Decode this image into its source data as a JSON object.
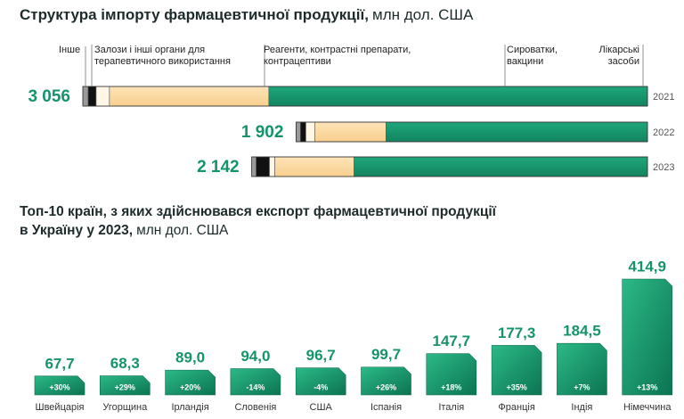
{
  "chart_data": [
    {
      "type": "stacked_hbar",
      "title": "Структура імпорту фармацевтичної продукції,",
      "unit": "млн дол. США",
      "categories": [
        "2021",
        "2022",
        "2023"
      ],
      "totals": [
        3056,
        1902,
        2142
      ],
      "value_labels": [
        "3 056",
        "1 902",
        "2 142"
      ],
      "series": [
        {
          "name": "Інше",
          "color": "#9a9a9a",
          "values": [
            29,
            24,
            24
          ]
        },
        {
          "name": "Залози і інші органи для терапевтичного використання",
          "color": "#111111",
          "values": [
            43,
            29,
            72
          ]
        },
        {
          "name": "Реагенти, контрастні препарати, контрацептиви",
          "color": "#fff6e6",
          "values": [
            72,
            48,
            29
          ]
        },
        {
          "name": "Сироватки, вакцини",
          "color": "#fbd79c",
          "values": [
            863,
            386,
            429
          ]
        },
        {
          "name": "Лікарські засоби",
          "color": "#15946b",
          "values": [
            2049,
            1415,
            1588
          ]
        }
      ]
    },
    {
      "type": "bar",
      "title": "Топ-10 країн, з яких здійснювався експорт фармацевтичної продукції",
      "title_line2": "в Україну у 2023,",
      "unit": "млн дол. США",
      "categories": [
        "Швейцарія",
        "Угорщина",
        "Ірландія",
        "Словенія",
        "США",
        "Іспанія",
        "Італія",
        "Франція",
        "Індія",
        "Німеччина"
      ],
      "values": [
        67.7,
        68.3,
        89.0,
        94.0,
        96.7,
        99.7,
        147.7,
        177.3,
        184.5,
        414.9
      ],
      "value_labels": [
        "67,7",
        "68,3",
        "89,0",
        "94,0",
        "96,7",
        "99,7",
        "147,7",
        "177,3",
        "184,5",
        "414,9"
      ],
      "growth_labels": [
        "+30%",
        "+29%",
        "+20%",
        "-14%",
        "-4%",
        "+26%",
        "+18%",
        "+35%",
        "+7%",
        "+13%"
      ],
      "color": "#15946b"
    }
  ]
}
